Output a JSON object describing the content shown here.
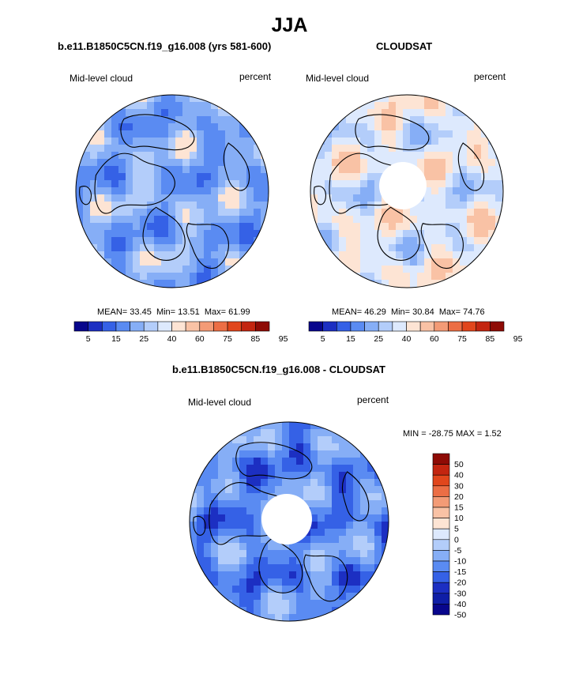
{
  "figure": {
    "title": "JJA"
  },
  "panels": [
    {
      "title": "b.e11.B1850C5CN.f19_g16.008 (yrs 581-600)",
      "left_label": "Mid-level cloud",
      "right_label": "percent",
      "stats": {
        "mean_label": "MEAN=",
        "mean": "33.45",
        "min_label": "Min=",
        "min": "13.51",
        "max_label": "Max=",
        "max": "61.99"
      },
      "tick_labels": [
        "5",
        "15",
        "25",
        "40",
        "60",
        "75",
        "85",
        "95"
      ]
    },
    {
      "title": "CLOUDSAT",
      "left_label": "Mid-level cloud",
      "right_label": "percent",
      "stats": {
        "mean_label": "MEAN=",
        "mean": "46.29",
        "min_label": "Min=",
        "min": "30.84",
        "max_label": "Max=",
        "max": "74.76"
      },
      "tick_labels": [
        "5",
        "15",
        "25",
        "40",
        "60",
        "75",
        "85",
        "95"
      ]
    },
    {
      "title": "b.e11.B1850C5CN.f19_g16.008 - CLOUDSAT",
      "left_label": "Mid-level cloud",
      "right_label": "percent",
      "stats_text": "MIN = -28.75 MAX =   1.52",
      "tick_labels": [
        "50",
        "40",
        "30",
        "20",
        "15",
        "10",
        "5",
        "0",
        "-5",
        "-10",
        "-15",
        "-20",
        "-30",
        "-40",
        "-50"
      ]
    }
  ],
  "colors": {
    "seq_scale": [
      "#08068c",
      "#1c2fc2",
      "#3561e6",
      "#5a8bf2",
      "#86aef6",
      "#b3cdfa",
      "#dde9fd",
      "#fde4d4",
      "#f9c2a5",
      "#f39b76",
      "#ec6e45",
      "#e1461c",
      "#c32510",
      "#8e0b05"
    ],
    "diff_scale": [
      "#8e0b05",
      "#c32510",
      "#e1461c",
      "#ec6e45",
      "#f39b76",
      "#f9c2a5",
      "#fde4d4",
      "#dde9fd",
      "#b3cdfa",
      "#86aef6",
      "#5a8bf2",
      "#3561e6",
      "#1c2fc2",
      "#0f1ea6",
      "#08068c"
    ]
  },
  "chart_data": [
    {
      "type": "heatmap",
      "projection": "north-polar-stereographic",
      "field": "Mid-level cloud",
      "units": "percent",
      "contour_levels": [
        5,
        10,
        15,
        20,
        25,
        30,
        40,
        50,
        60,
        70,
        75,
        80,
        85,
        90,
        95
      ],
      "mean": 33.45,
      "min": 13.51,
      "max": 61.99,
      "colorbar": "horizontal-below"
    },
    {
      "type": "heatmap",
      "projection": "north-polar-stereographic",
      "field": "Mid-level cloud",
      "units": "percent",
      "contour_levels": [
        5,
        10,
        15,
        20,
        25,
        30,
        40,
        50,
        60,
        70,
        75,
        80,
        85,
        90,
        95
      ],
      "mean": 46.29,
      "min": 30.84,
      "max": 74.76,
      "missing_region": "pole",
      "colorbar": "horizontal-below"
    },
    {
      "type": "heatmap",
      "projection": "north-polar-stereographic",
      "field": "Mid-level cloud",
      "units": "percent",
      "contour_levels": [
        -50,
        -40,
        -30,
        -20,
        -15,
        -10,
        -5,
        0,
        5,
        10,
        15,
        20,
        30,
        40,
        50
      ],
      "min": -28.75,
      "max": 1.52,
      "missing_region": "pole",
      "colorbar": "vertical-right"
    }
  ]
}
